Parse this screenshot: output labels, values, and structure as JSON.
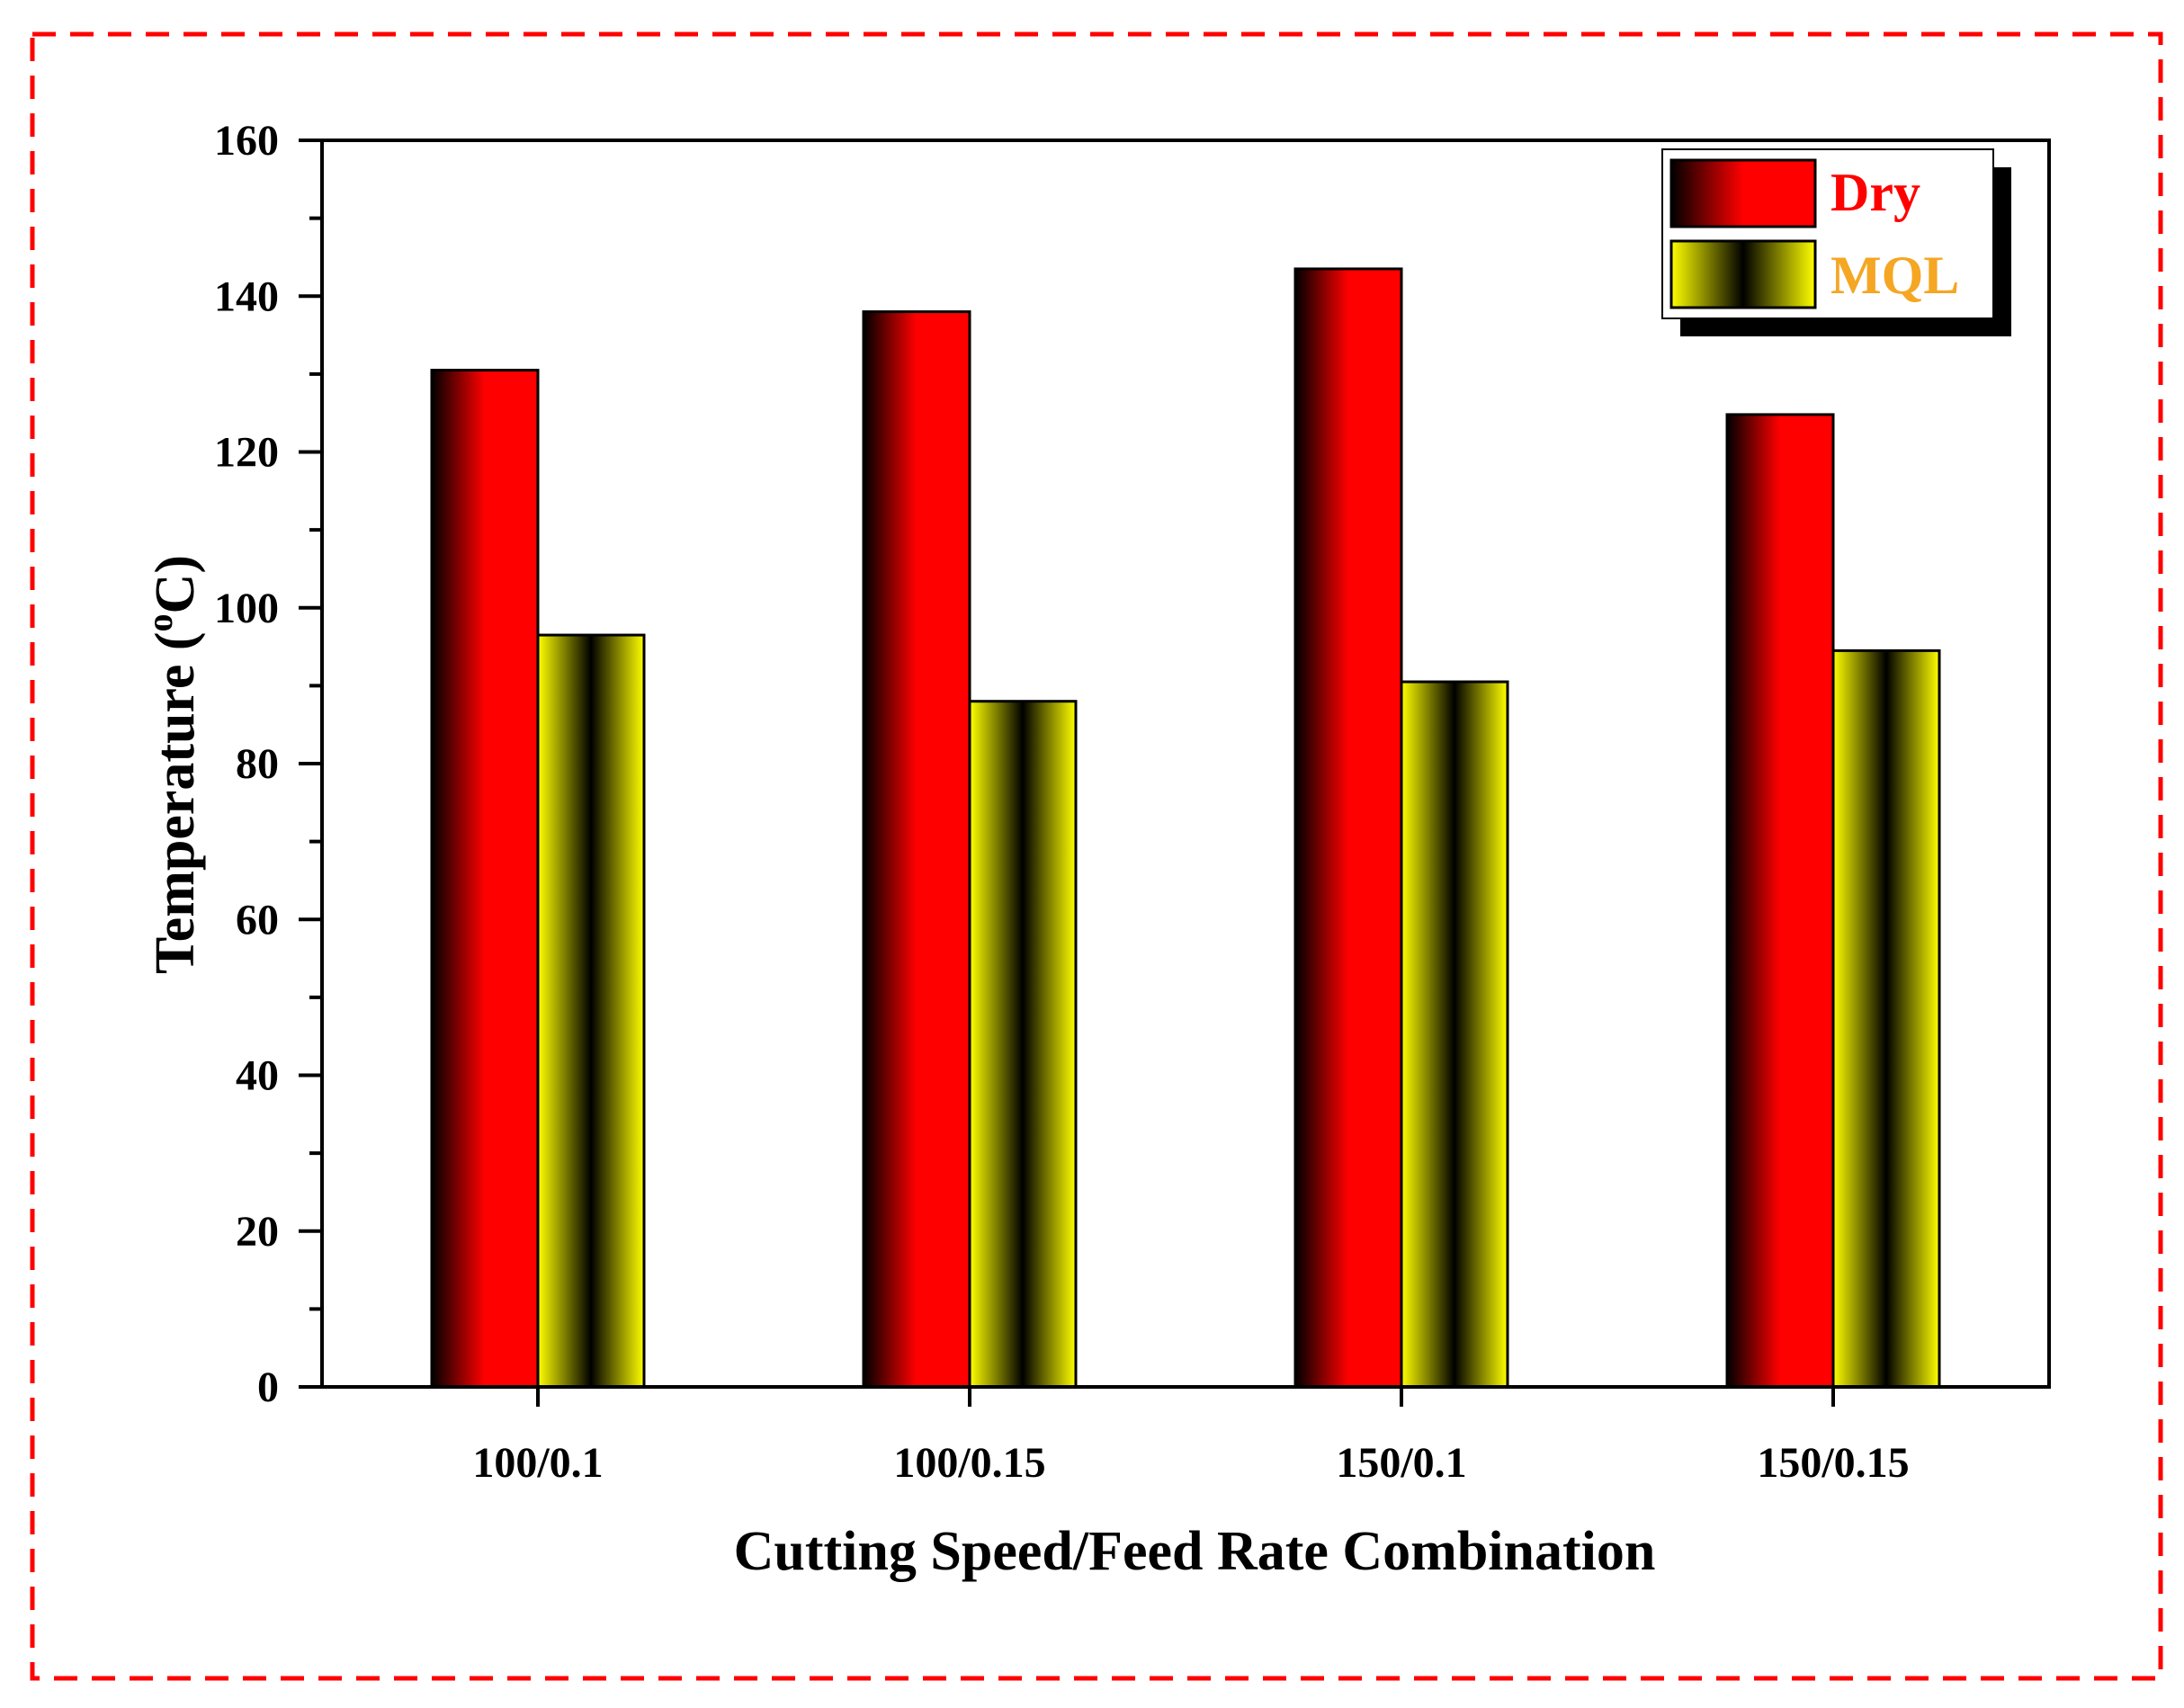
{
  "chart_data": {
    "type": "bar",
    "title": "",
    "xlabel": "Cutting Speed/Feed Rate Combination",
    "ylabel": "Temperature (",
    "ylabel_sup": "o",
    "ylabel_unit": "C)",
    "categories": [
      "100/0.1",
      "100/0.15",
      "150/0.1",
      "150/0.15"
    ],
    "ylim": [
      0,
      160
    ],
    "yticks": [
      "0",
      "20",
      "40",
      "60",
      "80",
      "100",
      "120",
      "140",
      "160"
    ],
    "legend_position": "top-right",
    "series": [
      {
        "name": "Dry",
        "values": [
          130.5,
          138,
          143.5,
          124.8
        ],
        "color": "#ff0000",
        "legend_text_color": "#ff0000"
      },
      {
        "name": "MQL",
        "values": [
          96.5,
          88,
          90.5,
          94.5
        ],
        "color": "#ffff00",
        "legend_text_color": "#f5a623"
      }
    ],
    "frame_color": "#ff0000"
  }
}
